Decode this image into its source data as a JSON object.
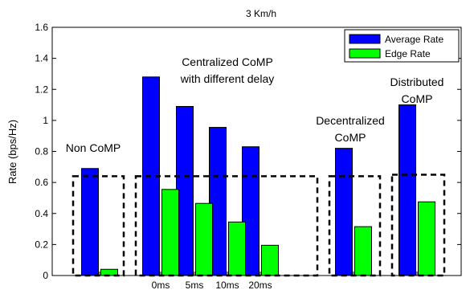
{
  "chart_data": {
    "type": "bar",
    "title": "3 Km/h",
    "xlabel": "",
    "ylabel": "Rate (bps/Hz)",
    "ylim": [
      0,
      1.6
    ],
    "yticks": [
      0,
      0.2,
      0.4,
      0.6,
      0.8,
      1,
      1.2,
      1.4,
      1.6
    ],
    "ytick_labels": [
      "0",
      "0.2",
      "0.4",
      "0.6",
      "0.8",
      "1",
      "1.2",
      "1.4",
      "1.6"
    ],
    "grid": false,
    "legend_position": "top-right",
    "categories": [
      "",
      "0ms",
      "5ms",
      "10ms",
      "20ms",
      "",
      ""
    ],
    "series": [
      {
        "name": "Average Rate",
        "color": "#0000ff",
        "values": [
          0.69,
          1.28,
          1.09,
          0.955,
          0.83,
          0.82,
          1.1
        ]
      },
      {
        "name": "Edge Rate",
        "color": "#00ff00",
        "values": [
          0.04,
          0.555,
          0.465,
          0.345,
          0.195,
          0.315,
          0.475
        ]
      }
    ],
    "groups": [
      {
        "label_lines": [
          "Non CoMP"
        ],
        "members": [
          0
        ],
        "box_top": 0.64
      },
      {
        "label_lines": [
          "Centralized CoMP",
          "with different delay"
        ],
        "members": [
          1,
          2,
          3,
          4
        ],
        "box_top": 0.64
      },
      {
        "label_lines": [
          "Decentralized",
          "CoMP"
        ],
        "members": [
          5
        ],
        "box_top": 0.64
      },
      {
        "label_lines": [
          "Distributed",
          "CoMP"
        ],
        "members": [
          6
        ],
        "box_top": 0.65
      }
    ]
  }
}
